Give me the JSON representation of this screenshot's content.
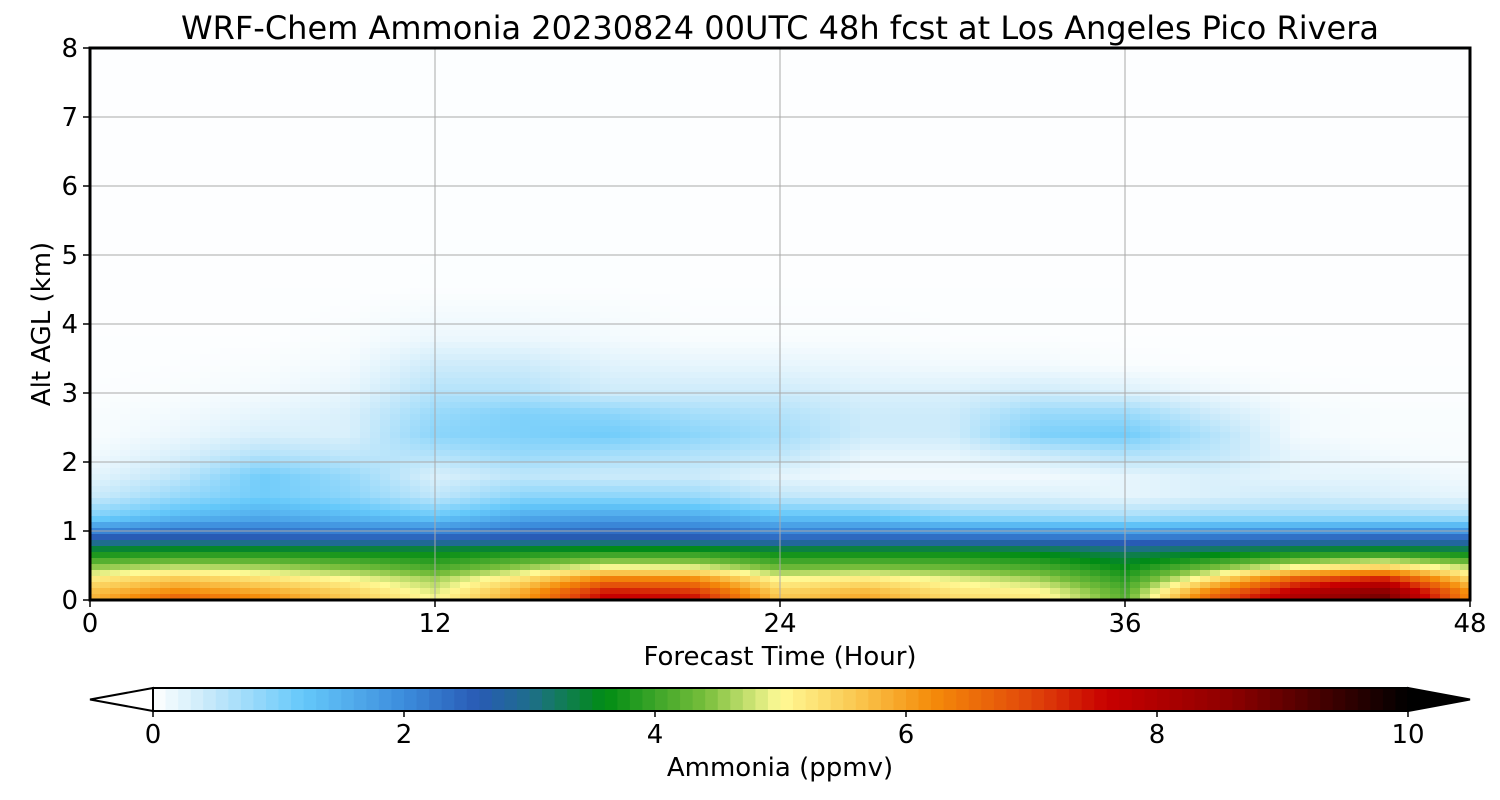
{
  "chart_data": {
    "type": "heatmap",
    "title": "WRF-Chem Ammonia  20230824 00UTC 48h fcst at Los Angeles Pico Rivera",
    "xlabel": "Forecast Time (Hour)",
    "ylabel": "Alt AGL (km)",
    "xlim": [
      0,
      48
    ],
    "ylim": [
      0,
      8
    ],
    "xticks": [
      "0",
      "12",
      "24",
      "36",
      "48"
    ],
    "yticks": [
      "0",
      "1",
      "2",
      "3",
      "4",
      "5",
      "6",
      "7",
      "8"
    ],
    "grid": true,
    "colorbar": {
      "label": "Ammonia  (ppmv)",
      "range": [
        0,
        10
      ],
      "ticks": [
        "0",
        "2",
        "4",
        "6",
        "8",
        "10"
      ],
      "extend": "both"
    },
    "x": [
      0,
      3,
      6,
      9,
      12,
      15,
      18,
      21,
      24,
      27,
      30,
      33,
      36,
      39,
      42,
      45,
      48
    ],
    "y": [
      0,
      0.15,
      0.3,
      0.5,
      0.7,
      0.9,
      1.2,
      1.5,
      1.8,
      2.1,
      2.4,
      2.7,
      3.0,
      3.4,
      3.8,
      4.5,
      8
    ],
    "z": [
      [
        5.8,
        6.8,
        6.3,
        5.6,
        5.0,
        6.0,
        7.8,
        7.6,
        5.6,
        6.0,
        5.4,
        5.2,
        4.2,
        6.8,
        8.2,
        9.0,
        6.2
      ],
      [
        5.6,
        6.1,
        5.8,
        5.4,
        4.8,
        5.8,
        7.3,
        7.0,
        5.4,
        5.7,
        5.2,
        5.0,
        4.1,
        6.2,
        7.7,
        8.5,
        6.0
      ],
      [
        5.2,
        5.6,
        5.3,
        5.0,
        4.6,
        5.3,
        6.4,
        6.2,
        5.0,
        5.2,
        4.9,
        4.6,
        3.9,
        5.3,
        6.8,
        7.4,
        5.4
      ],
      [
        4.4,
        4.6,
        4.5,
        4.3,
        4.0,
        4.4,
        4.8,
        4.7,
        4.2,
        4.3,
        4.2,
        4.0,
        3.6,
        4.2,
        4.8,
        5.2,
        4.6
      ],
      [
        3.6,
        3.7,
        3.7,
        3.6,
        3.6,
        3.7,
        3.8,
        3.8,
        3.6,
        3.6,
        3.6,
        3.5,
        3.2,
        3.4,
        3.6,
        3.7,
        3.5
      ],
      [
        2.6,
        2.7,
        2.6,
        2.5,
        2.5,
        2.6,
        2.7,
        2.6,
        2.4,
        2.5,
        2.4,
        2.3,
        2.2,
        2.3,
        2.4,
        2.5,
        2.4
      ],
      [
        1.0,
        1.4,
        1.6,
        1.4,
        1.2,
        1.6,
        1.7,
        1.6,
        1.3,
        1.2,
        0.9,
        0.8,
        0.7,
        0.8,
        0.8,
        0.8,
        0.7
      ],
      [
        0.4,
        0.8,
        1.1,
        0.9,
        0.5,
        0.9,
        0.9,
        0.8,
        0.5,
        0.4,
        0.3,
        0.3,
        0.2,
        0.3,
        0.4,
        0.3,
        0.2
      ],
      [
        0.2,
        0.5,
        1.1,
        0.8,
        0.3,
        0.5,
        0.4,
        0.4,
        0.2,
        0.1,
        0.1,
        0.1,
        0.2,
        0.3,
        0.2,
        0.2,
        0.1
      ],
      [
        0.1,
        0.3,
        0.6,
        0.5,
        0.6,
        0.8,
        0.7,
        0.6,
        0.5,
        0.2,
        0.2,
        0.4,
        0.6,
        0.5,
        0.2,
        0.1,
        0.05
      ],
      [
        0.05,
        0.15,
        0.3,
        0.3,
        0.9,
        1.0,
        1.1,
        0.9,
        0.7,
        0.4,
        0.4,
        1.0,
        1.1,
        0.6,
        0.1,
        0.05,
        0.05
      ],
      [
        0.05,
        0.1,
        0.2,
        0.3,
        0.8,
        1.0,
        0.9,
        0.7,
        0.6,
        0.4,
        0.4,
        0.8,
        0.8,
        0.4,
        0.1,
        0.05,
        0.05
      ],
      [
        0.03,
        0.05,
        0.1,
        0.2,
        0.6,
        0.6,
        0.4,
        0.4,
        0.4,
        0.3,
        0.3,
        0.4,
        0.3,
        0.15,
        0.05,
        0.03,
        0.03
      ],
      [
        0.02,
        0.03,
        0.05,
        0.1,
        0.4,
        0.4,
        0.25,
        0.2,
        0.2,
        0.15,
        0.1,
        0.1,
        0.05,
        0.03,
        0.02,
        0.02,
        0.02
      ],
      [
        0.02,
        0.02,
        0.02,
        0.05,
        0.15,
        0.15,
        0.1,
        0.05,
        0.05,
        0.05,
        0.03,
        0.03,
        0.02,
        0.02,
        0.02,
        0.02,
        0.02
      ],
      [
        0.02,
        0.02,
        0.02,
        0.02,
        0.03,
        0.03,
        0.03,
        0.02,
        0.02,
        0.02,
        0.02,
        0.02,
        0.02,
        0.02,
        0.02,
        0.02,
        0.02
      ],
      [
        0.02,
        0.02,
        0.02,
        0.02,
        0.02,
        0.02,
        0.02,
        0.02,
        0.02,
        0.02,
        0.02,
        0.02,
        0.02,
        0.02,
        0.02,
        0.02,
        0.02
      ]
    ]
  }
}
